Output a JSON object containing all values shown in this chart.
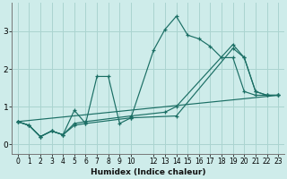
{
  "xlabel": "Humidex (Indice chaleur)",
  "bg_color": "#ceecea",
  "grid_color": "#aad4d0",
  "line_color": "#1a6e64",
  "xlim": [
    -0.5,
    23.5
  ],
  "ylim": [
    -0.25,
    3.75
  ],
  "xticks": [
    0,
    1,
    2,
    3,
    4,
    5,
    6,
    7,
    8,
    9,
    10,
    12,
    13,
    14,
    15,
    16,
    17,
    18,
    19,
    20,
    21,
    22,
    23
  ],
  "yticks": [
    0,
    1,
    2,
    3
  ],
  "lines": [
    {
      "x": [
        0,
        1,
        2,
        3,
        4,
        5,
        6,
        7,
        8,
        9,
        10,
        12,
        13,
        14,
        15,
        16,
        17,
        18,
        19,
        20,
        21,
        22,
        23
      ],
      "y": [
        0.6,
        0.5,
        0.2,
        0.35,
        0.25,
        0.9,
        0.55,
        1.8,
        1.8,
        0.55,
        0.7,
        2.5,
        3.05,
        3.4,
        2.9,
        2.8,
        2.6,
        2.3,
        2.3,
        1.4,
        1.3,
        1.3,
        1.3
      ]
    },
    {
      "x": [
        0,
        23
      ],
      "y": [
        0.6,
        1.3
      ]
    },
    {
      "x": [
        0,
        1,
        2,
        3,
        4,
        5,
        6,
        10,
        14,
        19,
        20,
        21,
        22,
        23
      ],
      "y": [
        0.6,
        0.5,
        0.2,
        0.35,
        0.25,
        0.5,
        0.55,
        0.7,
        0.75,
        2.55,
        2.3,
        1.4,
        1.3,
        1.3
      ]
    },
    {
      "x": [
        0,
        1,
        2,
        3,
        4,
        5,
        6,
        10,
        13,
        14,
        19,
        20,
        21,
        22,
        23
      ],
      "y": [
        0.6,
        0.5,
        0.2,
        0.35,
        0.25,
        0.55,
        0.6,
        0.75,
        0.85,
        1.0,
        2.65,
        2.3,
        1.4,
        1.3,
        1.3
      ]
    }
  ]
}
